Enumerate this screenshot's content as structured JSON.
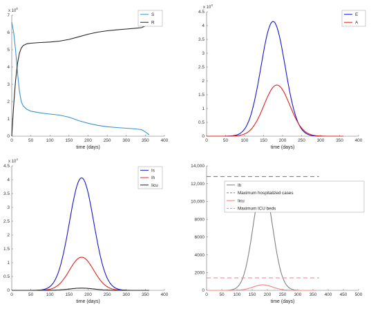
{
  "chart_data": [
    {
      "type": "line",
      "xlabel": "time (days)",
      "ylabel": "",
      "y_exponent": "x 10",
      "y_exponent_power": "6",
      "xlim": [
        0,
        400
      ],
      "ylim": [
        0,
        7
      ],
      "x_ticks": [
        "0",
        "50",
        "100",
        "150",
        "200",
        "250",
        "300",
        "350",
        "400"
      ],
      "y_ticks": [
        "0",
        "1",
        "2",
        "3",
        "4",
        "5",
        "6",
        "7"
      ],
      "legend_position": "top-right",
      "series": [
        {
          "name": "S",
          "color": "#3a92c8",
          "x": [
            0,
            5,
            10,
            15,
            20,
            25,
            30,
            40,
            50,
            75,
            100,
            125,
            150,
            175,
            200,
            225,
            250,
            275,
            300,
            325,
            340,
            350,
            360
          ],
          "y": [
            6.6,
            6.0,
            5.0,
            3.7,
            2.6,
            2.0,
            1.75,
            1.55,
            1.45,
            1.35,
            1.28,
            1.22,
            1.1,
            0.9,
            0.75,
            0.63,
            0.55,
            0.5,
            0.46,
            0.42,
            0.38,
            0.25,
            0.08
          ]
        },
        {
          "name": "R",
          "color": "#222222",
          "x": [
            0,
            5,
            10,
            15,
            20,
            25,
            30,
            40,
            50,
            75,
            100,
            125,
            150,
            175,
            200,
            225,
            250,
            275,
            300,
            325,
            340,
            350,
            360
          ],
          "y": [
            0.0,
            1.8,
            3.2,
            4.2,
            4.8,
            5.1,
            5.25,
            5.35,
            5.38,
            5.42,
            5.45,
            5.5,
            5.6,
            5.75,
            5.9,
            6.02,
            6.1,
            6.15,
            6.2,
            6.25,
            6.28,
            6.38,
            6.5
          ]
        }
      ]
    },
    {
      "type": "line",
      "xlabel": "time (days)",
      "ylabel": "",
      "y_exponent": "x 10",
      "y_exponent_power": "4",
      "xlim": [
        0,
        400
      ],
      "ylim": [
        0,
        4.5
      ],
      "x_ticks": [
        "0",
        "50",
        "100",
        "150",
        "200",
        "250",
        "300",
        "350",
        "400"
      ],
      "y_ticks": [
        "0",
        "0.5",
        "1",
        "1.5",
        "2",
        "2.5",
        "3",
        "3.5",
        "4",
        "4.5"
      ],
      "legend_position": "top-right",
      "series": [
        {
          "name": "E",
          "color": "#1515c8",
          "peak_x": 175,
          "peak_y": 4.15,
          "width": 45
        },
        {
          "name": "A",
          "color": "#e02020",
          "peak_x": 185,
          "peak_y": 1.85,
          "width": 48
        }
      ]
    },
    {
      "type": "line",
      "xlabel": "time (days)",
      "ylabel": "",
      "y_exponent": "x 10",
      "y_exponent_power": "4",
      "xlim": [
        0,
        400
      ],
      "ylim": [
        0,
        4.5
      ],
      "x_ticks": [
        "0",
        "50",
        "100",
        "150",
        "200",
        "250",
        "300",
        "350",
        "400"
      ],
      "y_ticks": [
        "0",
        "0.5",
        "1",
        "1.5",
        "2",
        "2.5",
        "3",
        "3.5",
        "4",
        "4.5"
      ],
      "legend_position": "top-right",
      "series": [
        {
          "name": "Is",
          "color": "#1515c8",
          "peak_x": 183,
          "peak_y": 4.07,
          "width": 45
        },
        {
          "name": "Ih",
          "color": "#e02020",
          "peak_x": 183,
          "peak_y": 1.2,
          "width": 45
        },
        {
          "name": "Iicu",
          "color": "#222222",
          "peak_x": 183,
          "peak_y": 0.08,
          "width": 45
        }
      ]
    },
    {
      "type": "line",
      "xlabel": "time (days)",
      "ylabel": "",
      "xlim": [
        0,
        500
      ],
      "ylim": [
        0,
        14000
      ],
      "x_ticks": [
        "0",
        "50",
        "100",
        "150",
        "200",
        "250",
        "300",
        "350",
        "400",
        "450",
        "500"
      ],
      "y_ticks": [
        "0",
        "2000",
        "4000",
        "6000",
        "8000",
        "10,000",
        "12,000",
        "14,000"
      ],
      "legend_position": "top-right",
      "series": [
        {
          "name": "Ih",
          "color": "#808080",
          "style": "solid",
          "peak_x": 185,
          "peak_y": 12000,
          "width": 45
        },
        {
          "name": "Maximum hospitalized cases",
          "color": "#808080",
          "style": "dashed",
          "x": [
            0,
            370
          ],
          "y": [
            12800,
            12800
          ]
        },
        {
          "name": "Iicu",
          "color": "#f08080",
          "style": "solid",
          "peak_x": 185,
          "peak_y": 620,
          "width": 45
        },
        {
          "name": "Maximum ICU beds",
          "color": "#f08080",
          "style": "dashed",
          "x": [
            0,
            370
          ],
          "y": [
            1400,
            1400
          ]
        }
      ]
    }
  ]
}
